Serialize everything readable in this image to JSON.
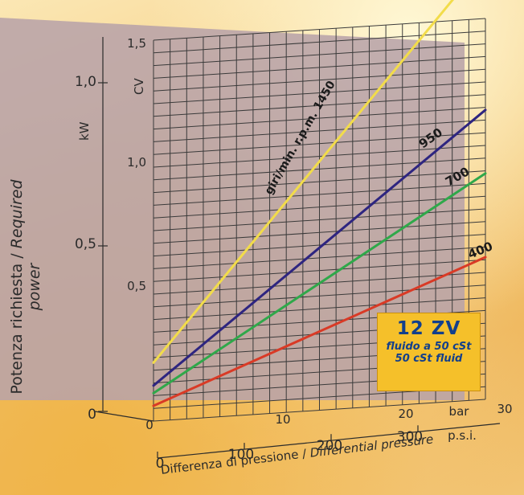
{
  "chart_data": {
    "type": "line",
    "title": "",
    "xlabel": "Differenza di pressione / Differential pressure",
    "ylabel": "Potenza richiesta / Required power",
    "x_units": {
      "primary": "bar",
      "secondary": "p.s.i."
    },
    "y_units": {
      "primary": "CV",
      "secondary": "kW"
    },
    "xlim": [
      0,
      30
    ],
    "ylim": [
      0,
      1.5
    ],
    "grid": true,
    "x_ticks_bar": [
      "0",
      "10",
      "20",
      "30"
    ],
    "x_ticks_psi": [
      "0",
      "100",
      "200",
      "300"
    ],
    "y_ticks_cv": [
      "0,5",
      "1,0",
      "1,5"
    ],
    "y_ticks_kw": [
      "0",
      "0,5",
      "1,0"
    ],
    "series_label_prefix": "giri/min. r.p.m.",
    "series": [
      {
        "name": "1450",
        "color": "#f2dc4a",
        "x": [
          0,
          30
        ],
        "y": [
          0.23,
          1.73
        ]
      },
      {
        "name": "950",
        "color": "#2e2580",
        "x": [
          0,
          30
        ],
        "y": [
          0.14,
          1.14
        ]
      },
      {
        "name": "700",
        "color": "#2fa84a",
        "x": [
          0,
          30
        ],
        "y": [
          0.11,
          0.89
        ]
      },
      {
        "name": "400",
        "color": "#d93a26",
        "x": [
          0,
          30
        ],
        "y": [
          0.06,
          0.56
        ]
      }
    ],
    "annotation": {
      "model": "12 ZV",
      "fluid_it": "fluido a 50 cSt",
      "fluid_en": "50 cSt fluid"
    }
  },
  "labels": {
    "ylabel_it": "Potenza richiesta / ",
    "ylabel_en": "Required power",
    "xlabel_it": "Differenza di pressione / ",
    "xlabel_en": "Differential pressure",
    "unit_cv": "CV",
    "unit_kw": "kW",
    "unit_bar": "bar",
    "unit_psi": "p.s.i.",
    "rpm_1450": "giri/min. r.p.m. 1450",
    "rpm_950": "950",
    "rpm_700": "700",
    "rpm_400": "400"
  },
  "colors": {
    "panel": "#b8a3a8",
    "grid": "#3a3a3a",
    "badge_bg": "#f5c02a",
    "badge_text": "#123f8c"
  }
}
